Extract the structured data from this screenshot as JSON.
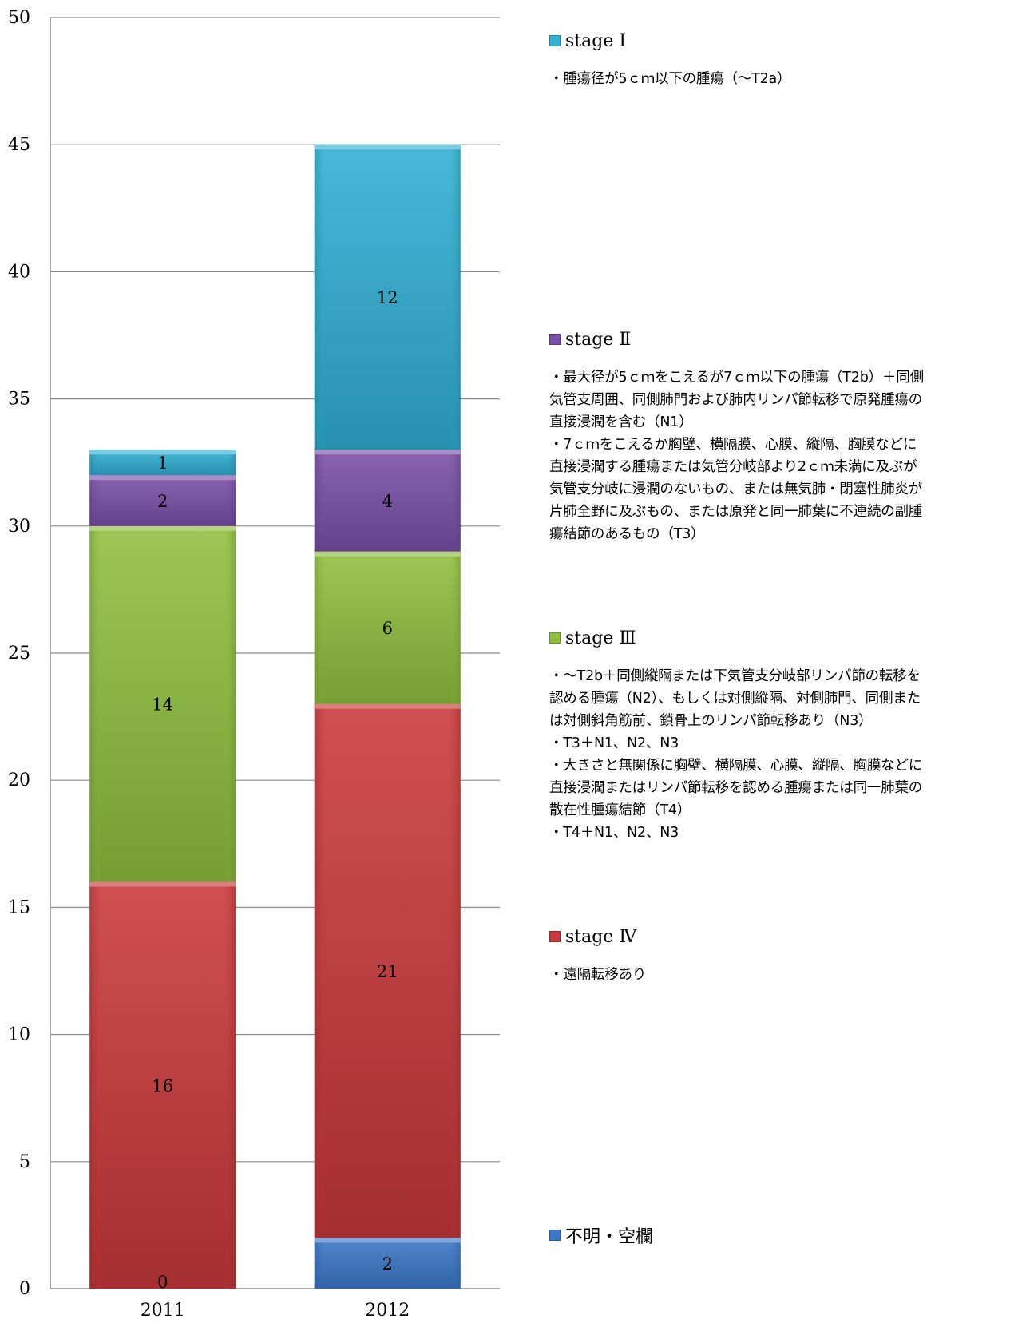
{
  "chart_data": {
    "type": "bar",
    "stacked": true,
    "categories": [
      "2011",
      "2012"
    ],
    "series": [
      {
        "name": "不明・空欄",
        "color": "#3a78c9",
        "values": [
          0,
          2
        ]
      },
      {
        "name": "stage Ⅳ",
        "color": "#c9383a",
        "values": [
          16,
          21
        ]
      },
      {
        "name": "stage Ⅲ",
        "color": "#8fbf3f",
        "values": [
          14,
          6
        ]
      },
      {
        "name": "stage Ⅱ",
        "color": "#7a4fa8",
        "values": [
          2,
          4
        ]
      },
      {
        "name": "stage Ⅰ",
        "color": "#2fb0d4",
        "values": [
          1,
          12
        ]
      }
    ],
    "ylim": [
      0,
      50
    ],
    "yticks": [
      "0",
      "5",
      "10",
      "15",
      "20",
      "25",
      "30",
      "35",
      "40",
      "45",
      "50"
    ],
    "grid": true,
    "legend_position": "right"
  },
  "legend": [
    {
      "label": "stage Ⅰ",
      "color": "#2fb0d4",
      "desc": "・腫瘍径が5ｃｍ以下の腫瘍（～T2a）"
    },
    {
      "label": "stage Ⅱ",
      "color": "#7a4fa8",
      "desc": "・最大径が5ｃｍをこえるが7ｃｍ以下の腫瘍（T2b）＋同側\n気管支周囲、同側肺門および肺内リンパ節転移で原発腫瘍の\n直接浸潤を含む（N1）\n・7ｃｍをこえるか胸壁、横隔膜、心膜、縦隔、胸膜などに\n直接浸潤する腫瘍または気管分岐部より2ｃｍ未満に及ぶが\n気管支分岐に浸潤のないもの、または無気肺・閉塞性肺炎が\n片肺全野に及ぶもの、または原発と同一肺葉に不連続の副腫\n瘍結節のあるもの（T3）"
    },
    {
      "label": "stage Ⅲ",
      "color": "#8fbf3f",
      "desc": "・～T2b＋同側縦隔または下気管支分岐部リンパ節の転移を\n認める腫瘍（N2）、もしくは対側縦隔、対側肺門、同側また\nは対側斜角筋前、鎖骨上のリンパ節転移あり（N3）\n・T3＋N1、N2、N3\n・大きさと無関係に胸壁、横隔膜、心膜、縦隔、胸膜などに\n直接浸潤またはリンパ節転移を認める腫瘍または同一肺葉の\n散在性腫瘍結節（T4）\n・T4＋N1、N2、N3"
    },
    {
      "label": "stage Ⅳ",
      "color": "#c9383a",
      "desc": "・遠隔転移あり"
    },
    {
      "label": "不明・空欄",
      "color": "#3a78c9",
      "desc": ""
    }
  ]
}
